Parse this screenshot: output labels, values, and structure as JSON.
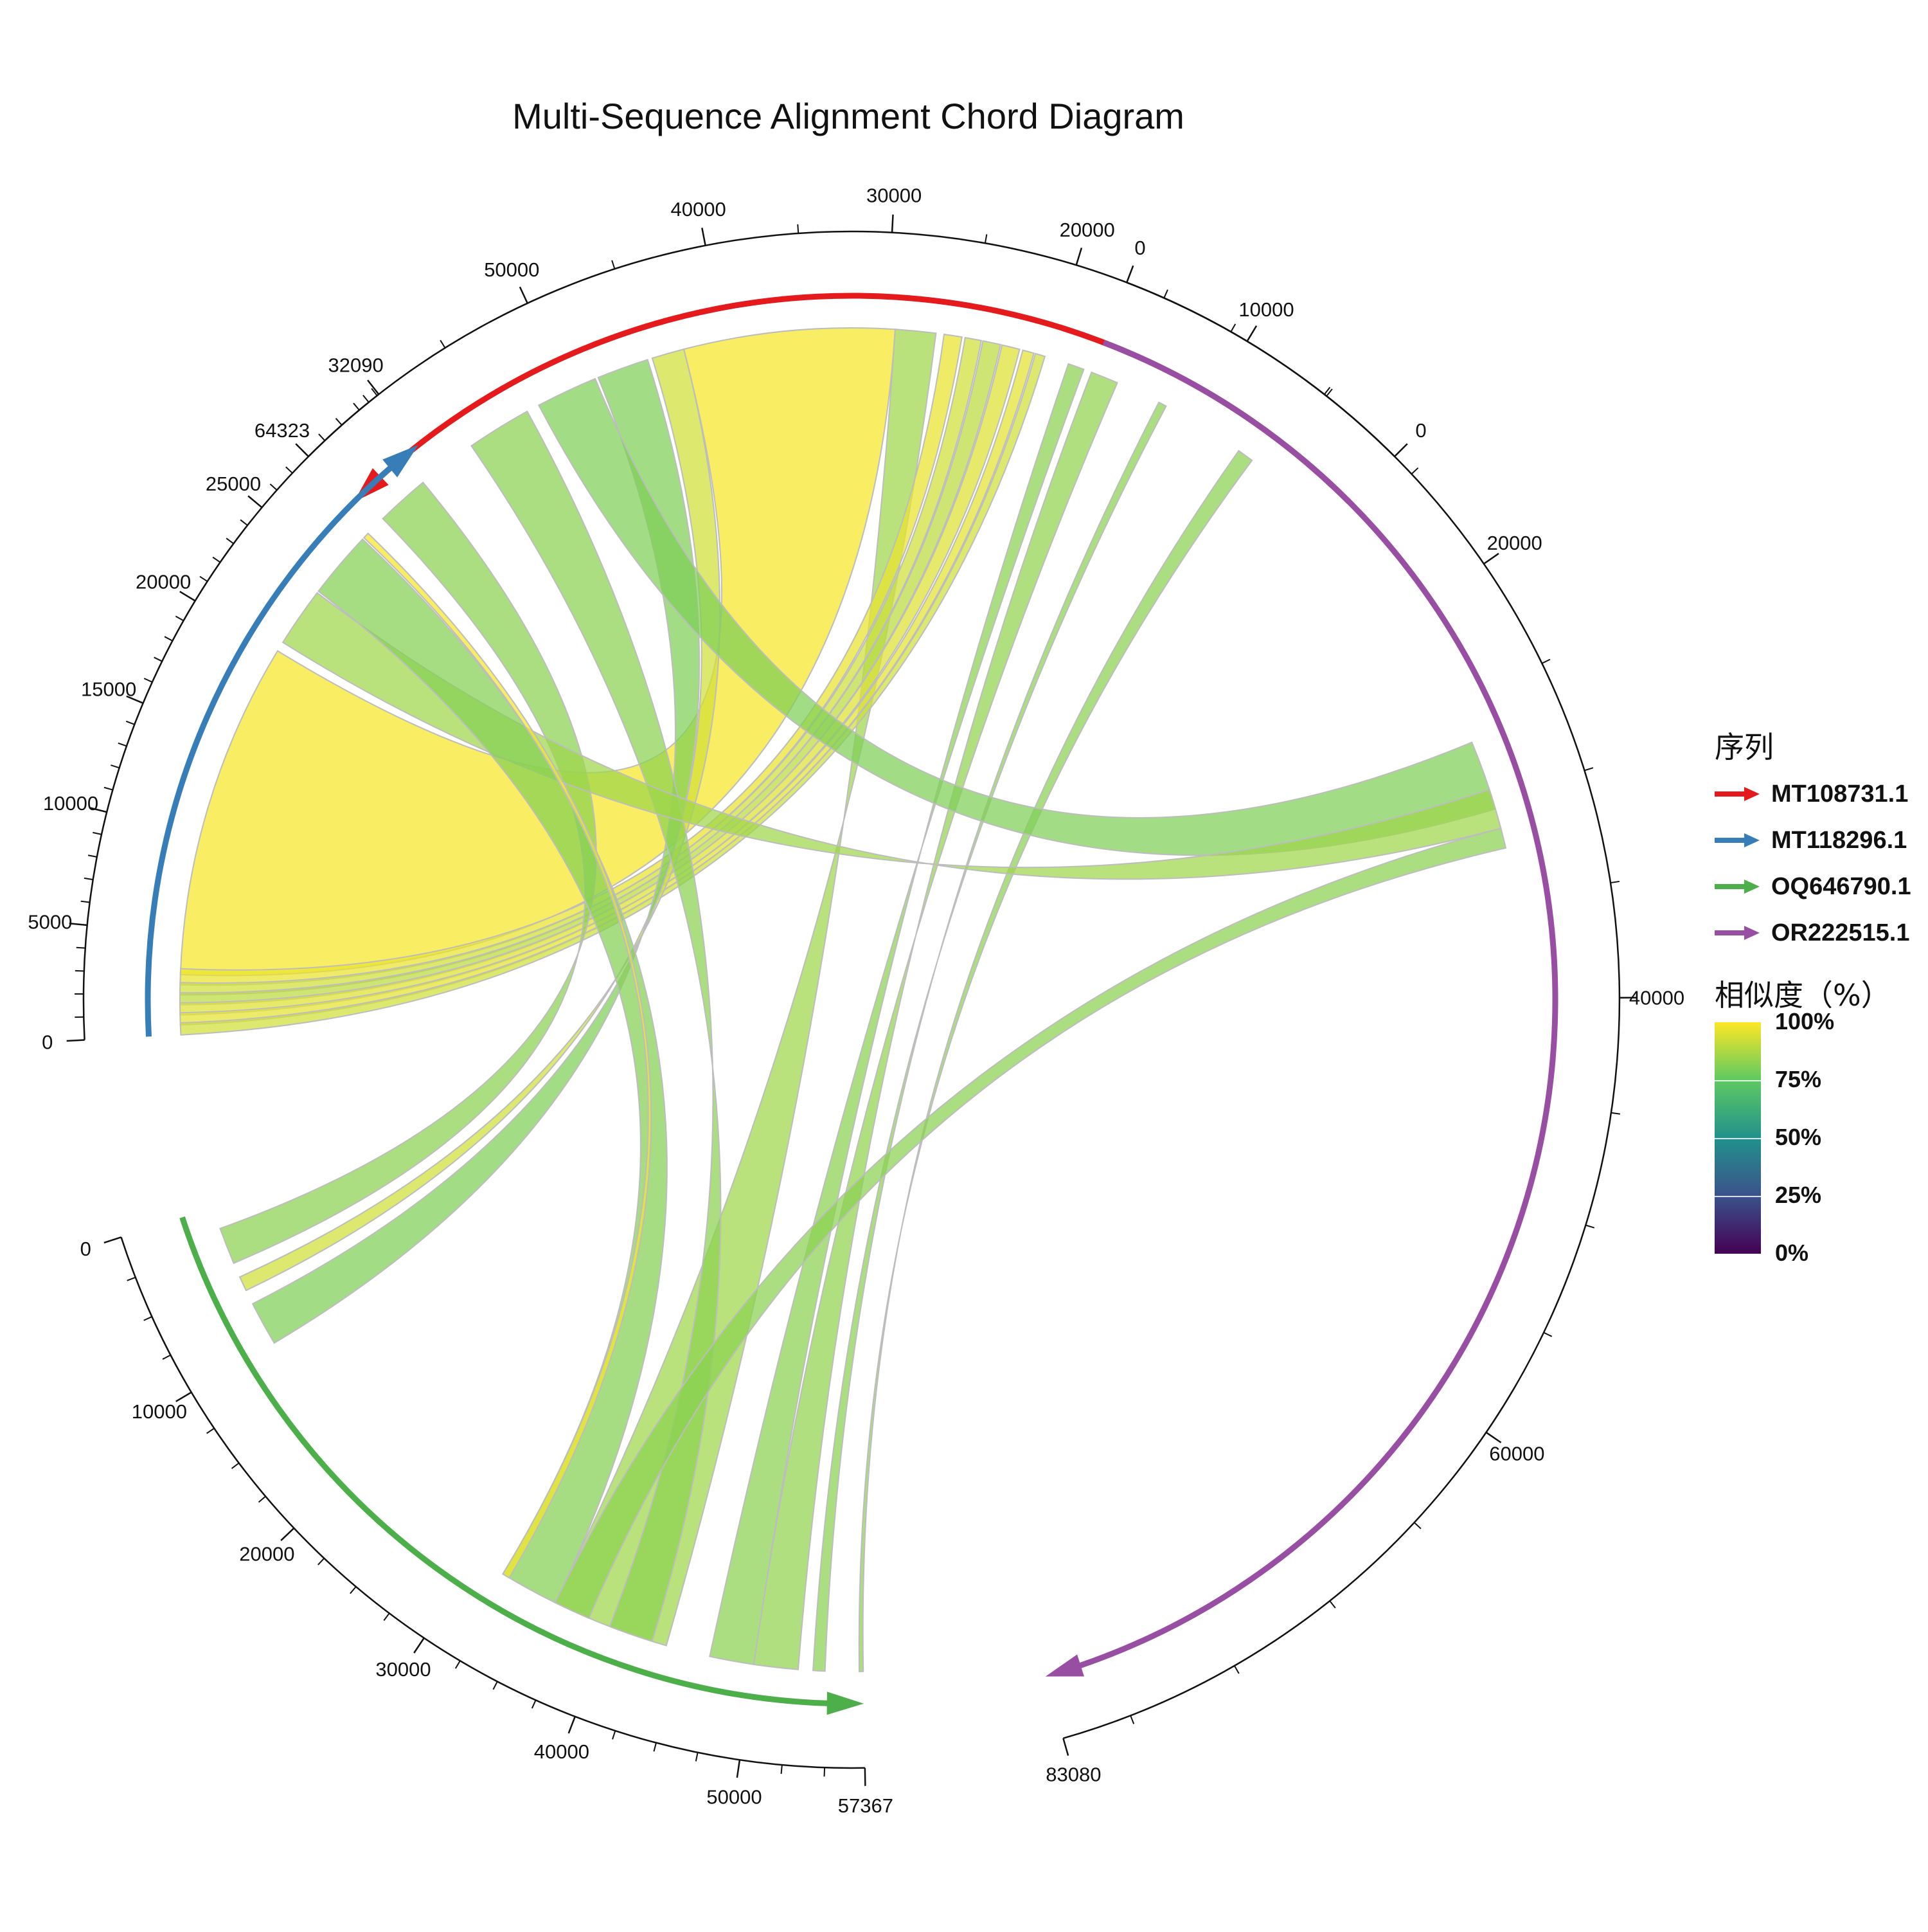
{
  "title": "Multi-Sequence Alignment Chord Diagram",
  "legend": {
    "sequence_title": "序列",
    "similarity_title": "相似度（%）",
    "colorbar_ticks": [
      "100%",
      "75%",
      "50%",
      "25%",
      "0%"
    ]
  },
  "sequences": [
    {
      "name": "MT108731.1",
      "length": 64323,
      "color": "#e41a1c",
      "tick_labels": [
        "0",
        "10000",
        "20000",
        "30000",
        "40000",
        "50000",
        "64323"
      ]
    },
    {
      "name": "MT118296.1",
      "length": 32090,
      "color": "#377eb8",
      "tick_labels": [
        "0",
        "5000",
        "10000",
        "15000",
        "20000",
        "25000",
        "32090"
      ]
    },
    {
      "name": "OQ646790.1",
      "length": 57367,
      "color": "#4daf4a",
      "tick_labels": [
        "0",
        "10000",
        "20000",
        "30000",
        "40000",
        "50000",
        "57367"
      ]
    },
    {
      "name": "OR222515.1",
      "length": 83080,
      "color": "#984ea3",
      "tick_labels": [
        "0",
        "20000",
        "40000",
        "60000",
        "83080"
      ]
    }
  ],
  "links": [
    {
      "a": 0,
      "a0": 29500,
      "a1": 42500,
      "b": 1,
      "b0": 3000,
      "b1": 20000,
      "similarity": 99
    },
    {
      "a": 0,
      "a0": 27000,
      "a1": 29500,
      "b": 2,
      "b0": 36000,
      "b1": 44000,
      "similarity": 85
    },
    {
      "a": 0,
      "a0": 25400,
      "a1": 26500,
      "b": 1,
      "b0": 2500,
      "b1": 3300,
      "similarity": 97
    },
    {
      "a": 0,
      "a0": 24200,
      "a1": 25200,
      "b": 1,
      "b0": 2000,
      "b1": 2600,
      "similarity": 93
    },
    {
      "a": 0,
      "a0": 23000,
      "a1": 24100,
      "b": 1,
      "b0": 1500,
      "b1": 2100,
      "similarity": 90
    },
    {
      "a": 0,
      "a0": 21800,
      "a1": 22900,
      "b": 1,
      "b0": 1000,
      "b1": 1600,
      "similarity": 95
    },
    {
      "a": 0,
      "a0": 20900,
      "a1": 21600,
      "b": 1,
      "b0": 500,
      "b1": 1100,
      "similarity": 96
    },
    {
      "a": 0,
      "a0": 20200,
      "a1": 20800,
      "b": 1,
      "b0": 0,
      "b1": 600,
      "similarity": 93
    },
    {
      "a": 0,
      "a0": 17700,
      "a1": 18700,
      "b": 2,
      "b0": 47000,
      "b1": 50000,
      "similarity": 82
    },
    {
      "a": 0,
      "a0": 15500,
      "a1": 17200,
      "b": 2,
      "b0": 50000,
      "b1": 53000,
      "similarity": 83
    },
    {
      "a": 0,
      "a0": 12200,
      "a1": 12700,
      "b": 2,
      "b0": 54000,
      "b1": 54800,
      "similarity": 82
    },
    {
      "a": 0,
      "a0": 6000,
      "a1": 7000,
      "b": 2,
      "b0": 57100,
      "b1": 57367,
      "similarity": 82
    },
    {
      "a": 0,
      "a0": 42500,
      "a1": 44500,
      "b": 2,
      "b0": 5000,
      "b1": 6000,
      "similarity": 93
    },
    {
      "a": 0,
      "a0": 44800,
      "a1": 48000,
      "b": 2,
      "b0": 7000,
      "b1": 10000,
      "similarity": 80
    },
    {
      "a": 0,
      "a0": 48200,
      "a1": 52000,
      "b": 3,
      "b0": 27000,
      "b1": 30500,
      "similarity": 80
    },
    {
      "a": 0,
      "a0": 52800,
      "a1": 56800,
      "b": 2,
      "b0": 40000,
      "b1": 43000,
      "similarity": 82
    },
    {
      "a": 0,
      "a0": 60500,
      "a1": 63800,
      "b": 2,
      "b0": 1500,
      "b1": 4000,
      "similarity": 82
    },
    {
      "a": 1,
      "a0": 20500,
      "a1": 23500,
      "b": 3,
      "b0": 29500,
      "b1": 31500,
      "similarity": 85
    },
    {
      "a": 1,
      "a0": 23600,
      "a1": 27000,
      "b": 2,
      "b0": 32000,
      "b1": 36000,
      "similarity": 81
    },
    {
      "a": 1,
      "a0": 27100,
      "a1": 27400,
      "b": 2,
      "b0": 32000,
      "b1": 32500,
      "similarity": 99
    },
    {
      "a": 2,
      "a0": 36000,
      "a1": 38500,
      "b": 3,
      "b0": 31500,
      "b1": 32500,
      "similarity": 82
    }
  ]
}
